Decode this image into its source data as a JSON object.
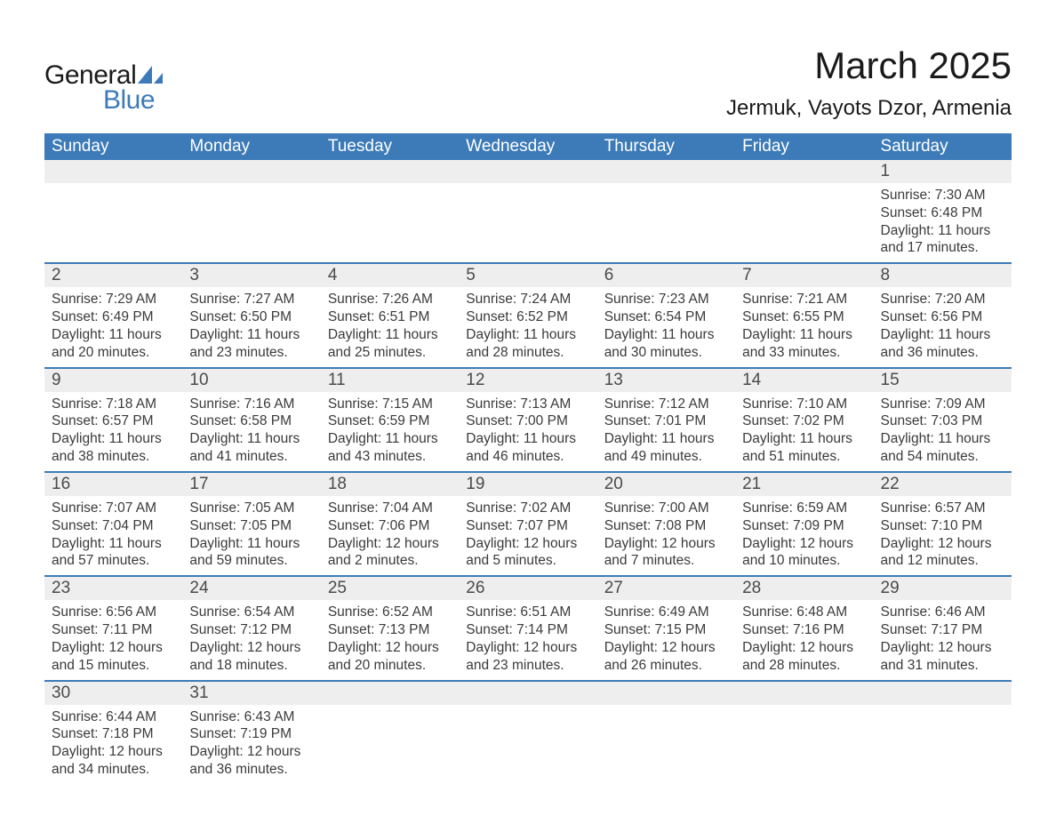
{
  "logo": {
    "text1": "General",
    "text2": "Blue",
    "shape_color": "#3d7bb8"
  },
  "header": {
    "month_title": "March 2025",
    "location": "Jermuk, Vayots Dzor, Armenia"
  },
  "colors": {
    "header_bg": "#3d7bb8",
    "header_text": "#ffffff",
    "row_sep": "#3d7bb8",
    "daynum_bg": "#eeeeee",
    "body_text": "#3a3a3a"
  },
  "calendar": {
    "weekdays": [
      "Sunday",
      "Monday",
      "Tuesday",
      "Wednesday",
      "Thursday",
      "Friday",
      "Saturday"
    ],
    "weeks": [
      [
        null,
        null,
        null,
        null,
        null,
        null,
        {
          "n": "1",
          "sunrise": "7:30 AM",
          "sunset": "6:48 PM",
          "daylight": "11 hours and 17 minutes."
        }
      ],
      [
        {
          "n": "2",
          "sunrise": "7:29 AM",
          "sunset": "6:49 PM",
          "daylight": "11 hours and 20 minutes."
        },
        {
          "n": "3",
          "sunrise": "7:27 AM",
          "sunset": "6:50 PM",
          "daylight": "11 hours and 23 minutes."
        },
        {
          "n": "4",
          "sunrise": "7:26 AM",
          "sunset": "6:51 PM",
          "daylight": "11 hours and 25 minutes."
        },
        {
          "n": "5",
          "sunrise": "7:24 AM",
          "sunset": "6:52 PM",
          "daylight": "11 hours and 28 minutes."
        },
        {
          "n": "6",
          "sunrise": "7:23 AM",
          "sunset": "6:54 PM",
          "daylight": "11 hours and 30 minutes."
        },
        {
          "n": "7",
          "sunrise": "7:21 AM",
          "sunset": "6:55 PM",
          "daylight": "11 hours and 33 minutes."
        },
        {
          "n": "8",
          "sunrise": "7:20 AM",
          "sunset": "6:56 PM",
          "daylight": "11 hours and 36 minutes."
        }
      ],
      [
        {
          "n": "9",
          "sunrise": "7:18 AM",
          "sunset": "6:57 PM",
          "daylight": "11 hours and 38 minutes."
        },
        {
          "n": "10",
          "sunrise": "7:16 AM",
          "sunset": "6:58 PM",
          "daylight": "11 hours and 41 minutes."
        },
        {
          "n": "11",
          "sunrise": "7:15 AM",
          "sunset": "6:59 PM",
          "daylight": "11 hours and 43 minutes."
        },
        {
          "n": "12",
          "sunrise": "7:13 AM",
          "sunset": "7:00 PM",
          "daylight": "11 hours and 46 minutes."
        },
        {
          "n": "13",
          "sunrise": "7:12 AM",
          "sunset": "7:01 PM",
          "daylight": "11 hours and 49 minutes."
        },
        {
          "n": "14",
          "sunrise": "7:10 AM",
          "sunset": "7:02 PM",
          "daylight": "11 hours and 51 minutes."
        },
        {
          "n": "15",
          "sunrise": "7:09 AM",
          "sunset": "7:03 PM",
          "daylight": "11 hours and 54 minutes."
        }
      ],
      [
        {
          "n": "16",
          "sunrise": "7:07 AM",
          "sunset": "7:04 PM",
          "daylight": "11 hours and 57 minutes."
        },
        {
          "n": "17",
          "sunrise": "7:05 AM",
          "sunset": "7:05 PM",
          "daylight": "11 hours and 59 minutes."
        },
        {
          "n": "18",
          "sunrise": "7:04 AM",
          "sunset": "7:06 PM",
          "daylight": "12 hours and 2 minutes."
        },
        {
          "n": "19",
          "sunrise": "7:02 AM",
          "sunset": "7:07 PM",
          "daylight": "12 hours and 5 minutes."
        },
        {
          "n": "20",
          "sunrise": "7:00 AM",
          "sunset": "7:08 PM",
          "daylight": "12 hours and 7 minutes."
        },
        {
          "n": "21",
          "sunrise": "6:59 AM",
          "sunset": "7:09 PM",
          "daylight": "12 hours and 10 minutes."
        },
        {
          "n": "22",
          "sunrise": "6:57 AM",
          "sunset": "7:10 PM",
          "daylight": "12 hours and 12 minutes."
        }
      ],
      [
        {
          "n": "23",
          "sunrise": "6:56 AM",
          "sunset": "7:11 PM",
          "daylight": "12 hours and 15 minutes."
        },
        {
          "n": "24",
          "sunrise": "6:54 AM",
          "sunset": "7:12 PM",
          "daylight": "12 hours and 18 minutes."
        },
        {
          "n": "25",
          "sunrise": "6:52 AM",
          "sunset": "7:13 PM",
          "daylight": "12 hours and 20 minutes."
        },
        {
          "n": "26",
          "sunrise": "6:51 AM",
          "sunset": "7:14 PM",
          "daylight": "12 hours and 23 minutes."
        },
        {
          "n": "27",
          "sunrise": "6:49 AM",
          "sunset": "7:15 PM",
          "daylight": "12 hours and 26 minutes."
        },
        {
          "n": "28",
          "sunrise": "6:48 AM",
          "sunset": "7:16 PM",
          "daylight": "12 hours and 28 minutes."
        },
        {
          "n": "29",
          "sunrise": "6:46 AM",
          "sunset": "7:17 PM",
          "daylight": "12 hours and 31 minutes."
        }
      ],
      [
        {
          "n": "30",
          "sunrise": "6:44 AM",
          "sunset": "7:18 PM",
          "daylight": "12 hours and 34 minutes."
        },
        {
          "n": "31",
          "sunrise": "6:43 AM",
          "sunset": "7:19 PM",
          "daylight": "12 hours and 36 minutes."
        },
        null,
        null,
        null,
        null,
        null
      ]
    ],
    "labels": {
      "sunrise": "Sunrise:",
      "sunset": "Sunset:",
      "daylight": "Daylight:"
    }
  }
}
